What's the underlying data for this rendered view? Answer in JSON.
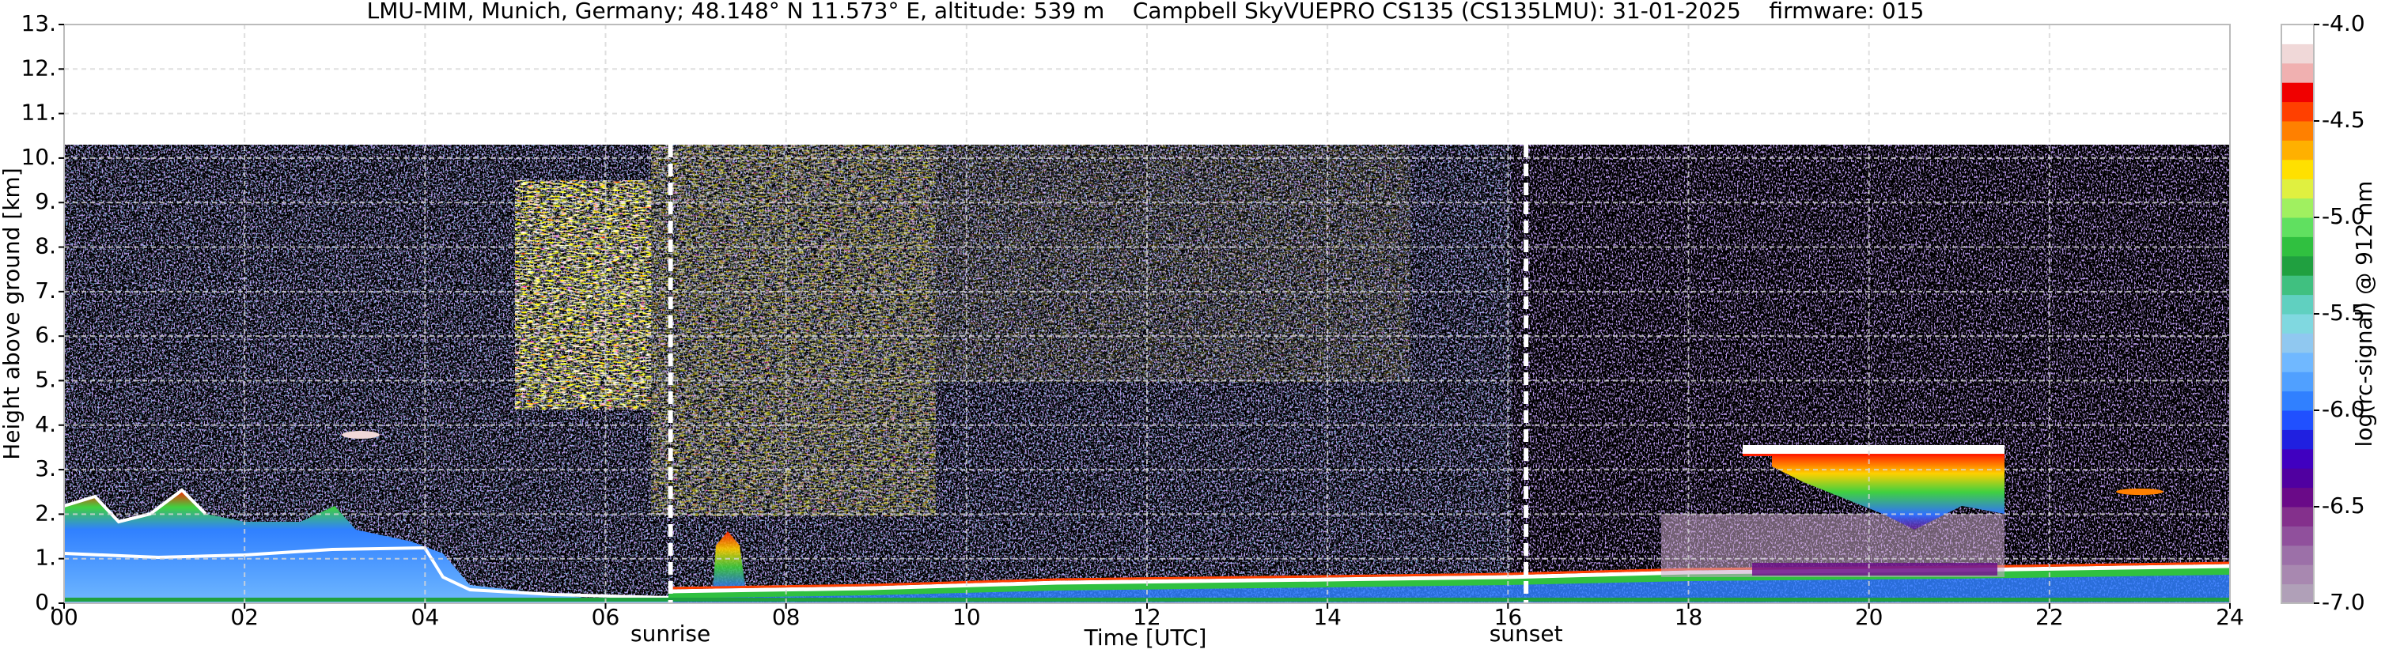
{
  "chart_data": {
    "type": "heatmap",
    "title": "LMU-MIM, Munich, Germany; 48.148° N 11.573° E, altitude: 539 m    Campbell SkyVUEPRO CS135 (CS135LMU): 31-01-2025    firmware: 015",
    "xlabel": "Time [UTC]",
    "ylabel": "Height above ground [km]",
    "xlim": [
      0,
      24
    ],
    "ylim": [
      0,
      13
    ],
    "xticks": [
      {
        "value": 0,
        "label": "00"
      },
      {
        "value": 2,
        "label": "02"
      },
      {
        "value": 4,
        "label": "04"
      },
      {
        "value": 6,
        "label": "06"
      },
      {
        "value": 8,
        "label": "08"
      },
      10,
      12,
      14,
      16,
      18,
      20,
      22,
      24
    ],
    "yticks": [
      {
        "value": 0,
        "label": "0."
      },
      {
        "value": 1,
        "label": "1."
      },
      {
        "value": 2,
        "label": "2."
      },
      {
        "value": 3,
        "label": "3."
      },
      {
        "value": 4,
        "label": "4."
      },
      {
        "value": 5,
        "label": "5."
      },
      {
        "value": 6,
        "label": "6."
      },
      {
        "value": 7,
        "label": "7."
      },
      {
        "value": 8,
        "label": "8."
      },
      {
        "value": 9,
        "label": "9."
      },
      {
        "value": 10,
        "label": "10."
      },
      {
        "value": 11,
        "label": "11."
      },
      {
        "value": 12,
        "label": "12."
      },
      {
        "value": 13,
        "label": "13."
      }
    ],
    "grid": true,
    "colorbar": {
      "label": "log(rc-signal) @ 912 nm",
      "clim": [
        -7,
        -4
      ],
      "ticks": [
        {
          "value": -7,
          "label": "-7.0"
        },
        {
          "value": -6.5,
          "label": "-6.5"
        },
        {
          "value": -6,
          "label": "-6.0"
        },
        {
          "value": -5.5,
          "label": "-5.5"
        },
        {
          "value": -5,
          "label": "-5.0"
        },
        {
          "value": -4.5,
          "label": "-4.5"
        },
        {
          "value": -4,
          "label": "-4.0"
        }
      ],
      "colors": [
        "#b0a0b8",
        "#a888b0",
        "#9c70a8",
        "#90509c",
        "#84308c",
        "#6a0a88",
        "#5000a0",
        "#4000c0",
        "#2020e0",
        "#2050ff",
        "#3080ff",
        "#50a0ff",
        "#70b8ff",
        "#90c8f0",
        "#80d8e0",
        "#60d0c0",
        "#40c080",
        "#20a040",
        "#30c040",
        "#60e060",
        "#a0f060",
        "#e0f040",
        "#ffe000",
        "#ffb000",
        "#ff8000",
        "#ff4000",
        "#f00000",
        "#f0b0b0",
        "#f0d8d8",
        "#ffffff"
      ]
    },
    "annotations": [
      {
        "text": "sunrise",
        "x": 6.72
      },
      {
        "text": "sunset",
        "x": 16.2
      }
    ]
  }
}
